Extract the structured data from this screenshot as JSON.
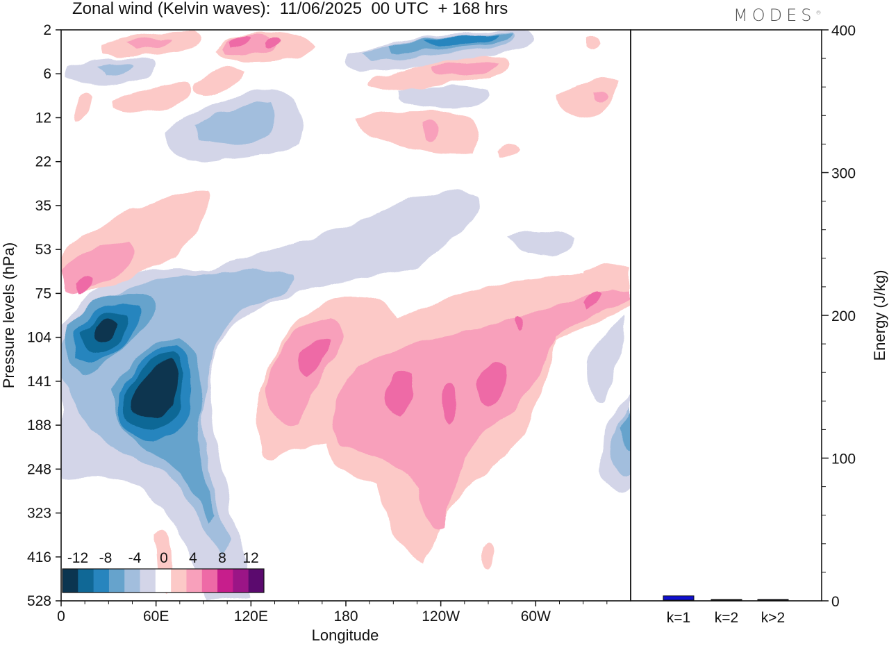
{
  "header": {
    "title": "Zonal wind (Kelvin waves):  11/06/2025  00 UTC  + 168 hrs",
    "logo": "MODES"
  },
  "chart_data": [
    {
      "type": "heatmap",
      "xlabel": "Longitude",
      "ylabel": "Pressure levels (hPa)",
      "x_ticks": [
        "0",
        "60E",
        "120E",
        "180",
        "120W",
        "60W"
      ],
      "x_tick_values": [
        0,
        60,
        120,
        180,
        240,
        300
      ],
      "xlim": [
        0,
        360
      ],
      "y_ticks": [
        "2",
        "6",
        "12",
        "22",
        "35",
        "53",
        "75",
        "104",
        "141",
        "188",
        "248",
        "323",
        "416",
        "528"
      ],
      "y_scale": "pressure levels (inverted, top = 2 hPa)",
      "colorbar": {
        "labels": [
          "-12",
          "-8",
          "-4",
          "0",
          "4",
          "8",
          "12"
        ],
        "levels": [
          -14,
          -12,
          -10,
          -8,
          -6,
          -4,
          -2,
          2,
          4,
          6,
          8,
          10,
          12,
          14
        ],
        "colors": [
          "#0b3550",
          "#106896",
          "#2785be",
          "#66a3cc",
          "#a2bedd",
          "#d3d5e8",
          "#ffffff",
          "#fcc9c7",
          "#f8a0bb",
          "#ee6aa6",
          "#c71e8c",
          "#9b1586",
          "#5b0a6e"
        ]
      },
      "features": [
        {
          "sign": "negative",
          "lon": [
            40,
            80
          ],
          "pressure": [
            104,
            188
          ],
          "peak": -14
        },
        {
          "sign": "negative",
          "lon": [
            5,
            45
          ],
          "pressure": [
            75,
            141
          ],
          "peak": -12
        },
        {
          "sign": "negative",
          "lon": [
            230,
            280
          ],
          "pressure": [
            2,
            6
          ],
          "peak": -10
        },
        {
          "sign": "negative",
          "lon": [
            60,
            150
          ],
          "pressure": [
            6,
            22
          ],
          "peak": -6
        },
        {
          "sign": "negative",
          "lon": [
            345,
            360
          ],
          "pressure": [
            141,
            248
          ],
          "peak": -6
        },
        {
          "sign": "positive",
          "lon": [
            200,
            300
          ],
          "pressure": [
            75,
            323
          ],
          "peak": 6
        },
        {
          "sign": "positive",
          "lon": [
            140,
            200
          ],
          "pressure": [
            75,
            248
          ],
          "peak": 6
        },
        {
          "sign": "positive",
          "lon": [
            0,
            95
          ],
          "pressure": [
            35,
            104
          ],
          "peak": 6
        },
        {
          "sign": "positive",
          "lon": [
            330,
            360
          ],
          "pressure": [
            53,
            104
          ],
          "peak": 6
        },
        {
          "sign": "positive",
          "lon": [
            100,
            150
          ],
          "pressure": [
            2,
            6
          ],
          "peak": 10
        },
        {
          "sign": "positive",
          "lon": [
            190,
            290
          ],
          "pressure": [
            12,
            22
          ],
          "peak": 4
        }
      ]
    },
    {
      "type": "bar",
      "ylabel": "Energy (J/kg)",
      "categories": [
        "k=1",
        "k=2",
        "k>2"
      ],
      "values": [
        3,
        0.3,
        0.5
      ],
      "ylim": [
        0,
        400
      ],
      "y_ticks": [
        "0",
        "100",
        "200",
        "300",
        "400"
      ],
      "y_tick_values": [
        0,
        100,
        200,
        300,
        400
      ],
      "bar_color": "#1010d0"
    }
  ]
}
